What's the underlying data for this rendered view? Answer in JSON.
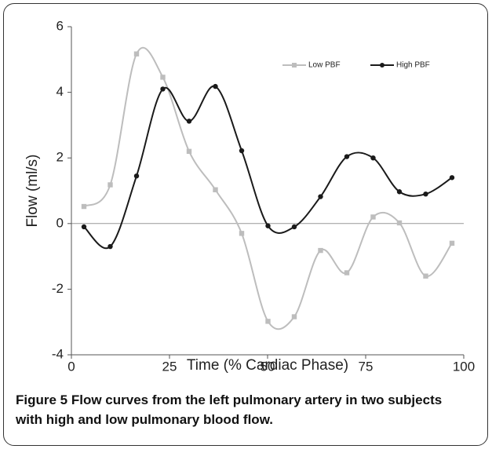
{
  "chart_data": {
    "type": "line",
    "xlabel": "Time (% Cardiac Phase)",
    "ylabel": "Flow (ml/s)",
    "figure_label": "Figure 5",
    "caption": "Flow curves from the left pulmonary artery in two subjects with high and low pulmonary blood flow.",
    "x": [
      3.2,
      9.9,
      16.6,
      23.3,
      30,
      36.7,
      43.4,
      50.1,
      56.8,
      63.5,
      70.2,
      76.9,
      83.6,
      90.3,
      97
    ],
    "series": [
      {
        "name": "Low PBF",
        "color": "#bdbdbd",
        "marker": "square",
        "values": [
          0.52,
          1.18,
          5.17,
          4.46,
          2.2,
          1.03,
          -0.3,
          -2.98,
          -2.84,
          -0.82,
          -1.5,
          0.2,
          0.02,
          -1.6,
          -0.6
        ]
      },
      {
        "name": "High PBF",
        "color": "#1a1a1a",
        "marker": "circle",
        "values": [
          -0.1,
          -0.7,
          1.45,
          4.1,
          3.12,
          4.18,
          2.22,
          -0.07,
          -0.1,
          0.82,
          2.04,
          2.0,
          0.97,
          0.9,
          1.4
        ]
      }
    ],
    "xlim": [
      0,
      100
    ],
    "xticks": [
      0,
      25,
      50,
      75,
      100
    ],
    "ylim": [
      -4,
      6
    ],
    "yticks": [
      -4,
      -2,
      0,
      2,
      4,
      6
    ],
    "legend": "upper right",
    "smooth": true
  }
}
